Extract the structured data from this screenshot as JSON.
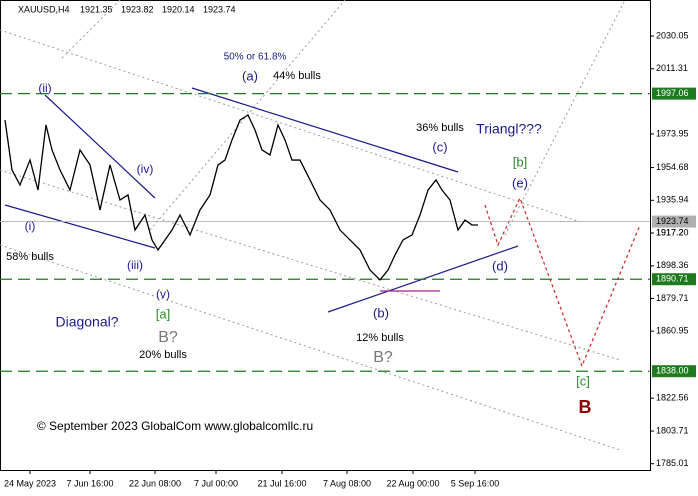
{
  "chart_data": {
    "type": "line",
    "symbol": "XAUUSD,H4",
    "ohlc": [
      1921.35,
      1923.82,
      1920.14,
      1923.74
    ],
    "x": [
      5,
      12,
      20,
      30,
      38,
      46,
      52,
      60,
      70,
      80,
      90,
      100,
      110,
      120,
      128,
      135,
      145,
      152,
      158,
      165,
      172,
      180,
      190,
      200,
      210,
      218,
      225,
      232,
      240,
      248,
      255,
      262,
      270,
      278,
      285,
      292,
      300,
      310,
      320,
      330,
      340,
      350,
      360,
      370,
      380,
      388,
      395,
      403,
      412,
      420,
      428,
      436,
      442,
      450,
      458,
      465,
      472,
      478
    ],
    "series": [
      {
        "color": "#000000",
        "values": [
          1981.9,
          1953.3,
          1944.7,
          1959.0,
          1941.8,
          1979.1,
          1964.8,
          1953.3,
          1941.8,
          1964.8,
          1956.2,
          1930.4,
          1956.2,
          1936.1,
          1939.0,
          1918.9,
          1927.5,
          1913.2,
          1907.5,
          1913.2,
          1918.9,
          1927.5,
          1916.1,
          1930.4,
          1939.0,
          1956.2,
          1959.0,
          1970.5,
          1981.9,
          1984.8,
          1976.2,
          1964.8,
          1961.9,
          1979.1,
          1970.5,
          1959.0,
          1959.0,
          1947.6,
          1936.1,
          1930.4,
          1918.9,
          1913.2,
          1907.5,
          1896.0,
          1890.3,
          1896.0,
          1904.6,
          1913.2,
          1916.1,
          1927.5,
          1941.8,
          1947.6,
          1941.8,
          1936.1,
          1918.9,
          1924.6,
          1921.8,
          1921.8
        ]
      }
    ],
    "xlim": [
      0,
      650
    ],
    "xticks": [
      {
        "value": 30,
        "label": "24 May 2023"
      },
      {
        "value": 90,
        "label": "7 Jun 16:00"
      },
      {
        "value": 155,
        "label": "22 Jun 08:00"
      },
      {
        "value": 216,
        "label": "7 Jul 00:00"
      },
      {
        "value": 282,
        "label": "21 Jul 16:00"
      },
      {
        "value": 347,
        "label": "7 Aug 08:00"
      },
      {
        "value": 413,
        "label": "22 Aug 00:00"
      },
      {
        "value": 475,
        "label": "5 Sep 16:00"
      }
    ],
    "ylim": [
      1781.4,
      2050.7
    ],
    "yticks": [
      2030.05,
      2011.31,
      1973.95,
      1954.68,
      1935.94,
      1917.2,
      {
        "value": 1917.2,
        "label": "1917.20"
      },
      1898.36,
      1879.71,
      1860.95,
      1822.56,
      1803.71,
      1785.01
    ],
    "levels": [
      {
        "value": 1997.06,
        "color": "#1f7a1f"
      },
      {
        "value": 1923.74,
        "color": "#b0b0b0"
      },
      {
        "value": 1890.71,
        "color": "#1f7a1f"
      },
      {
        "value": {
          "value": 1838,
          "label": "1838.00"
        },
        "color": "#1f7a1f"
      }
    ],
    "annotations": [
      "(ii)",
      "(i)",
      "(iii)",
      "(iv)",
      "(v)",
      "58% bulls",
      "Diagonal?",
      "[a]",
      "B?",
      "20% bulls",
      "50% or 61.8%",
      "(a)",
      "44% bulls",
      "36% bulls",
      "Triangl???",
      "(c)",
      "[b]",
      "(e)",
      "(d)",
      "(b)",
      "12% bulls",
      "B?",
      "[c]",
      "B",
      "© September 2023 GlobalCom www.globalcomllc.ru"
    ]
  }
}
